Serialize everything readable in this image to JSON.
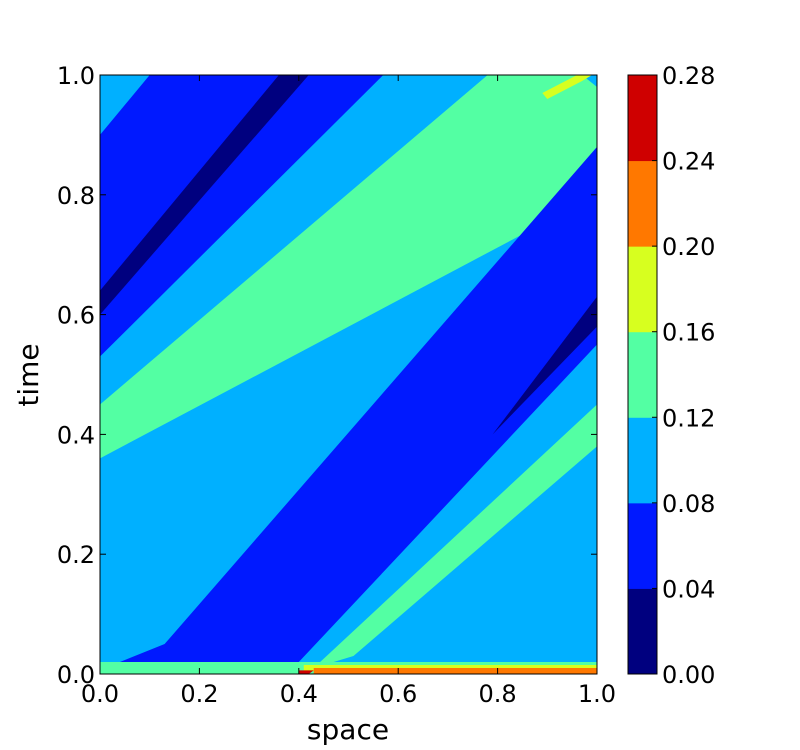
{
  "chart_data": {
    "type": "contour",
    "xlabel": "space",
    "ylabel": "time",
    "xlim": [
      0.0,
      1.0
    ],
    "ylim": [
      0.0,
      1.0
    ],
    "x_ticks": [
      "0.0",
      "0.2",
      "0.4",
      "0.6",
      "0.8",
      "1.0"
    ],
    "y_ticks": [
      "0.0",
      "0.2",
      "0.4",
      "0.6",
      "0.8",
      "1.0"
    ],
    "colorbar": {
      "levels": [
        0.0,
        0.04,
        0.08,
        0.12,
        0.16,
        0.2,
        0.24,
        0.28
      ],
      "tick_labels": [
        "0.00",
        "0.04",
        "0.08",
        "0.12",
        "0.16",
        "0.20",
        "0.24",
        "0.28"
      ],
      "colors": [
        "#00007f",
        "#0019ff",
        "#00b0ff",
        "#53ffa3",
        "#d7ff1f",
        "#ff7800",
        "#cf0000"
      ]
    },
    "regions": [
      {
        "level": "0.08-0.12",
        "points": [
          [
            0,
            0
          ],
          [
            1,
            0
          ],
          [
            1,
            1
          ],
          [
            0,
            1
          ]
        ]
      },
      {
        "level": "0.04-0.08",
        "points": [
          [
            0.1,
            1.0
          ],
          [
            0.57,
            1.0
          ],
          [
            0.0,
            0.53
          ],
          [
            0.0,
            0.9
          ]
        ]
      },
      {
        "level": "0.00-0.04",
        "points": [
          [
            0.36,
            1.0
          ],
          [
            0.42,
            1.0
          ],
          [
            0.0,
            0.6
          ],
          [
            0.0,
            0.64
          ]
        ]
      },
      {
        "level": "0.12-0.16",
        "points": [
          [
            0.78,
            1.0
          ],
          [
            0.97,
            1.0
          ],
          [
            1.0,
            0.98
          ],
          [
            1.0,
            0.8
          ],
          [
            0.0,
            0.36
          ],
          [
            0.0,
            0.45
          ]
        ]
      },
      {
        "level": "0.16-0.20",
        "points": [
          [
            0.89,
            0.97
          ],
          [
            0.96,
            1.0
          ],
          [
            0.99,
            1.0
          ],
          [
            0.97,
            0.99
          ],
          [
            0.9,
            0.96
          ]
        ]
      },
      {
        "level": "0.04-0.08",
        "points": [
          [
            0.04,
            0.02
          ],
          [
            0.07,
            0.01
          ],
          [
            0.36,
            0.01
          ],
          [
            0.4,
            0.02
          ],
          [
            1.0,
            0.55
          ],
          [
            1.0,
            0.88
          ],
          [
            0.13,
            0.05
          ]
        ]
      },
      {
        "level": "0.00-0.04",
        "points": [
          [
            0.79,
            0.4
          ],
          [
            1.0,
            0.63
          ],
          [
            1.0,
            0.58
          ]
        ]
      },
      {
        "level": "0.12-0.16",
        "points": [
          [
            0.51,
            0.03
          ],
          [
            0.43,
            0.01
          ],
          [
            1.0,
            0.45
          ],
          [
            1.0,
            0.38
          ]
        ]
      },
      {
        "level": "0.12-0.16",
        "points": [
          [
            0.0,
            0.02
          ],
          [
            1.0,
            0.02
          ],
          [
            1.0,
            0.0
          ],
          [
            0.0,
            0.0
          ]
        ]
      },
      {
        "level": "0.16-0.20",
        "points": [
          [
            0.41,
            0.015
          ],
          [
            1.0,
            0.015
          ],
          [
            1.0,
            0.005
          ],
          [
            0.41,
            0.005
          ]
        ]
      },
      {
        "level": "0.20-0.24",
        "points": [
          [
            0.43,
            0.01
          ],
          [
            1.0,
            0.01
          ],
          [
            1.0,
            0.0
          ],
          [
            0.43,
            0.0
          ]
        ]
      },
      {
        "level": "0.24-0.28",
        "points": [
          [
            0.4,
            0.006
          ],
          [
            0.43,
            0.006
          ],
          [
            0.42,
            0.0
          ],
          [
            0.4,
            0.0
          ]
        ]
      }
    ]
  }
}
